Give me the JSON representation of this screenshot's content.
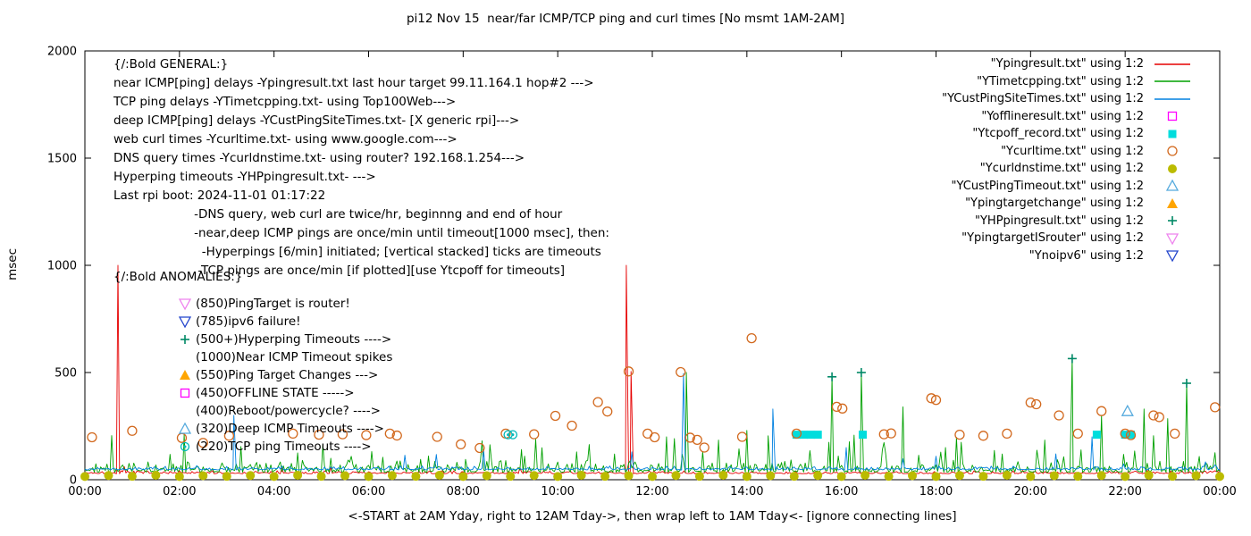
{
  "title": "pi12 Nov 15  near/far ICMP/TCP ping and curl times [No msmt 1AM-2AM]",
  "y_axis_label": "msec",
  "x_axis_label": "<-START at 2AM Yday, right to 12AM Tday->, then wrap left to 1AM Tday<- [ignore connecting lines]",
  "general_notes": {
    "lines": [
      "{/:Bold GENERAL:}",
      "near ICMP[ping] delays -Ypingresult.txt last hour target 99.11.164.1 hop#2 --->",
      "TCP ping delays -YTimetcpping.txt- using Top100Web--->",
      "deep ICMP[ping] delays -YCustPingSiteTimes.txt- [X generic rpi]--->",
      "web curl times -Ycurltime.txt- using www.google.com--->",
      "DNS query times -Ycurldnstime.txt- using router? 192.168.1.254--->",
      "Hyperping timeouts -YHPpingresult.txt- --->",
      "Last rpi boot: 2024-11-01 01:17:22",
      "                     -DNS query, web curl are twice/hr, beginnng and end of hour",
      "                     -near,deep ICMP pings are once/min until timeout[1000 msec], then:",
      "                       -Hyperpings [6/min] initiated; [vertical stacked] ticks are timeouts",
      "                      -TCP pings are once/min [if plotted][use Ytcpoff for timeouts]"
    ]
  },
  "anomalies": {
    "heading": "{/:Bold ANOMALIES:}",
    "items": [
      {
        "marker": "triangle-down-open",
        "color": "#ee82ee",
        "label": "(850)PingTarget is router!"
      },
      {
        "marker": "triangle-down-open",
        "color": "#2244cc",
        "label": "(785)ipv6 failure!"
      },
      {
        "marker": "plus",
        "color": "#008866",
        "label": "(500+)Hyperping Timeouts ---->"
      },
      {
        "marker": "none",
        "color": "",
        "label": "(1000)Near ICMP Timeout spikes"
      },
      {
        "marker": "triangle-up-filled",
        "color": "#ffa500",
        "label": "(550)Ping Target Changes --->"
      },
      {
        "marker": "square-open",
        "color": "#ff00ff",
        "label": "(450)OFFLINE STATE ----->"
      },
      {
        "marker": "none",
        "color": "",
        "label": "(400)Reboot/powercycle? ---->"
      },
      {
        "marker": "triangle-up-open",
        "color": "#55aadd",
        "label": "(320)Deep ICMP Timeouts ---->"
      },
      {
        "marker": "circle-dot",
        "color": "#00b8b8",
        "label": "(220)TCP ping Timeouts ---->"
      }
    ]
  },
  "legend": {
    "items": [
      {
        "label": "\"Ypingresult.txt\" using 1:2",
        "sample": "line",
        "color": "#e60000"
      },
      {
        "label": "\"YTimetcpping.txt\" using 1:2",
        "sample": "line",
        "color": "#00a000"
      },
      {
        "label": "\"YCustPingSiteTimes.txt\" using 1:2",
        "sample": "line",
        "color": "#0080e0"
      },
      {
        "label": "\"Yofflineresult.txt\" using 1:2",
        "sample": "square-open",
        "color": "#ff00ff"
      },
      {
        "label": "\"Ytcpoff_record.txt\" using 1:2",
        "sample": "square-filled",
        "color": "#00dddd"
      },
      {
        "label": "\"Ycurltime.txt\" using 1:2",
        "sample": "circle-open",
        "color": "#d2691e"
      },
      {
        "label": "\"Ycurldnstime.txt\" using 1:2",
        "sample": "circle-filled",
        "color": "#bbbb00"
      },
      {
        "label": "\"YCustPingTimeout.txt\" using 1:2",
        "sample": "triangle-up-open",
        "color": "#55aadd"
      },
      {
        "label": "\"Ypingtargetchange\" using 1:2",
        "sample": "triangle-up-filled",
        "color": "#ffa500"
      },
      {
        "label": "\"YHPpingresult.txt\" using 1:2",
        "sample": "plus",
        "color": "#008866"
      },
      {
        "label": "\"YpingtargetISrouter\" using 1:2",
        "sample": "triangle-down-open",
        "color": "#ee82ee"
      },
      {
        "label": "\"Ynoipv6\" using 1:2",
        "sample": "triangle-down-open",
        "color": "#2244cc"
      }
    ]
  },
  "chart_data": {
    "type": "line",
    "title": "pi12 Nov 15  near/far ICMP/TCP ping and curl times [No msmt 1AM-2AM]",
    "xlabel": "<-START at 2AM Yday, right to 12AM Tday->, then wrap left to 1AM Tday<- [ignore connecting lines]",
    "ylabel": "msec",
    "x_axis": {
      "range_hours": [
        0,
        24
      ],
      "tick_step_hours": 2,
      "tick_labels": [
        "00:00",
        "02:00",
        "04:00",
        "06:00",
        "08:00",
        "10:00",
        "12:00",
        "14:00",
        "16:00",
        "18:00",
        "20:00",
        "22:00",
        "00:00"
      ]
    },
    "y_axis": {
      "range": [
        0,
        2000
      ],
      "ticks": [
        0,
        500,
        1000,
        1500,
        2000
      ]
    },
    "line_series": [
      {
        "name": "Ypingresult.txt",
        "color": "#e60000",
        "seed": 7,
        "baseline_msec": 28,
        "noise_msec": 8,
        "spike_prob": 0.008,
        "spike_extra_msec": 50,
        "spikes": [
          [
            0.7,
            1000
          ],
          [
            11.45,
            1000
          ],
          [
            11.55,
            505
          ]
        ]
      },
      {
        "name": "YTimetcpping.txt",
        "color": "#00a000",
        "seed": 42,
        "baseline_msec": 35,
        "noise_msec": 30,
        "spike_prob": 0.09,
        "spike_extra_msec": 140,
        "spikes": [
          [
            2.1,
            210
          ],
          [
            3.3,
            155
          ],
          [
            4.5,
            125
          ],
          [
            5.2,
            100
          ],
          [
            6.3,
            105
          ],
          [
            7.1,
            95
          ],
          [
            8.05,
            95
          ],
          [
            9.3,
            110
          ],
          [
            10.4,
            130
          ],
          [
            11.2,
            120
          ],
          [
            12.3,
            200
          ],
          [
            12.72,
            500
          ],
          [
            13.4,
            185
          ],
          [
            14.0,
            230
          ],
          [
            14.45,
            205
          ],
          [
            15.8,
            480
          ],
          [
            16.42,
            500
          ],
          [
            17.3,
            340
          ],
          [
            18.2,
            150
          ],
          [
            19.4,
            120
          ],
          [
            20.3,
            185
          ],
          [
            20.88,
            565
          ],
          [
            21.5,
            300
          ],
          [
            22.4,
            330
          ],
          [
            22.9,
            285
          ],
          [
            23.3,
            450
          ]
        ]
      },
      {
        "name": "YCustPingSiteTimes.txt",
        "color": "#0080e0",
        "seed": 99,
        "baseline_msec": 46,
        "noise_msec": 10,
        "spike_prob": 0.02,
        "spike_extra_msec": 80,
        "spikes": [
          [
            3.15,
            300
          ],
          [
            12.62,
            560
          ],
          [
            12.66,
            495
          ],
          [
            14.55,
            330
          ],
          [
            16.1,
            150
          ],
          [
            21.3,
            200
          ]
        ]
      }
    ],
    "scatter_series": [
      {
        "name": "Yofflineresult.txt",
        "marker": "square-open",
        "color": "#ff00ff",
        "points": []
      },
      {
        "name": "Ytcpoff_record.txt",
        "marker": "square-filled",
        "color": "#00dddd",
        "points": [
          [
            15.05,
            210
          ],
          [
            15.2,
            210
          ],
          [
            15.35,
            210
          ],
          [
            15.5,
            210
          ],
          [
            16.45,
            210
          ],
          [
            21.4,
            210
          ],
          [
            22.0,
            210
          ],
          [
            22.12,
            210
          ]
        ]
      },
      {
        "name": "Ycurltime.txt",
        "marker": "circle-open",
        "color": "#d2691e",
        "points": [
          [
            0.15,
            198
          ],
          [
            1.0,
            228
          ],
          [
            2.05,
            195
          ],
          [
            2.5,
            172
          ],
          [
            3.05,
            205
          ],
          [
            4.4,
            215
          ],
          [
            4.95,
            210
          ],
          [
            5.45,
            212
          ],
          [
            5.95,
            208
          ],
          [
            6.45,
            215
          ],
          [
            6.6,
            206
          ],
          [
            7.45,
            200
          ],
          [
            7.95,
            165
          ],
          [
            8.35,
            148
          ],
          [
            8.9,
            215
          ],
          [
            9.5,
            212
          ],
          [
            9.95,
            298
          ],
          [
            10.3,
            252
          ],
          [
            10.85,
            362
          ],
          [
            11.05,
            318
          ],
          [
            11.5,
            505
          ],
          [
            11.9,
            215
          ],
          [
            12.05,
            198
          ],
          [
            12.6,
            502
          ],
          [
            12.8,
            196
          ],
          [
            12.95,
            186
          ],
          [
            13.1,
            150
          ],
          [
            13.9,
            200
          ],
          [
            14.1,
            660
          ],
          [
            15.05,
            215
          ],
          [
            15.9,
            340
          ],
          [
            16.02,
            332
          ],
          [
            16.9,
            212
          ],
          [
            17.05,
            216
          ],
          [
            17.9,
            380
          ],
          [
            18.0,
            372
          ],
          [
            18.5,
            210
          ],
          [
            19.0,
            205
          ],
          [
            19.5,
            215
          ],
          [
            20.0,
            360
          ],
          [
            20.12,
            352
          ],
          [
            20.6,
            300
          ],
          [
            21.0,
            215
          ],
          [
            21.5,
            320
          ],
          [
            22.0,
            215
          ],
          [
            22.12,
            208
          ],
          [
            22.6,
            300
          ],
          [
            22.72,
            292
          ],
          [
            23.05,
            215
          ],
          [
            23.9,
            338
          ]
        ]
      },
      {
        "name": "Ycurldnstime.txt",
        "marker": "circle-filled",
        "color": "#bbbb00",
        "points": [
          [
            0,
            15
          ],
          [
            0.5,
            20
          ],
          [
            1,
            16
          ],
          [
            1.5,
            21
          ],
          [
            2,
            15
          ],
          [
            2.5,
            19
          ],
          [
            3,
            16
          ],
          [
            3.5,
            20
          ],
          [
            4,
            15
          ],
          [
            4.5,
            21
          ],
          [
            5,
            16
          ],
          [
            5.5,
            19
          ],
          [
            6,
            15
          ],
          [
            6.5,
            20
          ],
          [
            7,
            16
          ],
          [
            7.5,
            21
          ],
          [
            8,
            15
          ],
          [
            8.5,
            19
          ],
          [
            9,
            16
          ],
          [
            9.5,
            20
          ],
          [
            10,
            15
          ],
          [
            10.5,
            21
          ],
          [
            11,
            16
          ],
          [
            11.5,
            19
          ],
          [
            12,
            15
          ],
          [
            12.5,
            20
          ],
          [
            13,
            16
          ],
          [
            13.5,
            21
          ],
          [
            14,
            15
          ],
          [
            14.5,
            19
          ],
          [
            15,
            16
          ],
          [
            15.5,
            20
          ],
          [
            16,
            15
          ],
          [
            16.5,
            21
          ],
          [
            17,
            16
          ],
          [
            17.5,
            19
          ],
          [
            18,
            15
          ],
          [
            18.5,
            20
          ],
          [
            19,
            16
          ],
          [
            19.5,
            21
          ],
          [
            20,
            15
          ],
          [
            20.5,
            19
          ],
          [
            21,
            16
          ],
          [
            21.5,
            20
          ],
          [
            22,
            15
          ],
          [
            22.5,
            21
          ],
          [
            23,
            16
          ],
          [
            23.5,
            19
          ],
          [
            24,
            15
          ]
        ]
      },
      {
        "name": "YCustPingTimeout.txt",
        "marker": "triangle-up-open",
        "color": "#55aadd",
        "points": [
          [
            22.05,
            320
          ]
        ]
      },
      {
        "name": "Ypingtargetchange",
        "marker": "triangle-up-filled",
        "color": "#ffa500",
        "points": []
      },
      {
        "name": "YHPpingresult.txt",
        "marker": "plus",
        "color": "#008866",
        "points": [
          [
            15.8,
            480
          ],
          [
            16.42,
            500
          ],
          [
            20.88,
            565
          ],
          [
            23.3,
            450
          ]
        ]
      },
      {
        "name": "YpingtargetISrouter",
        "marker": "triangle-down-open",
        "color": "#ee82ee",
        "points": []
      },
      {
        "name": "Ynoipv6",
        "marker": "triangle-down-open",
        "color": "#2244cc",
        "points": []
      },
      {
        "name": "TCP ping Timeouts",
        "marker": "circle-dot",
        "color": "#00b8b8",
        "points": [
          [
            8.95,
            210
          ],
          [
            9.05,
            210
          ]
        ]
      }
    ]
  }
}
